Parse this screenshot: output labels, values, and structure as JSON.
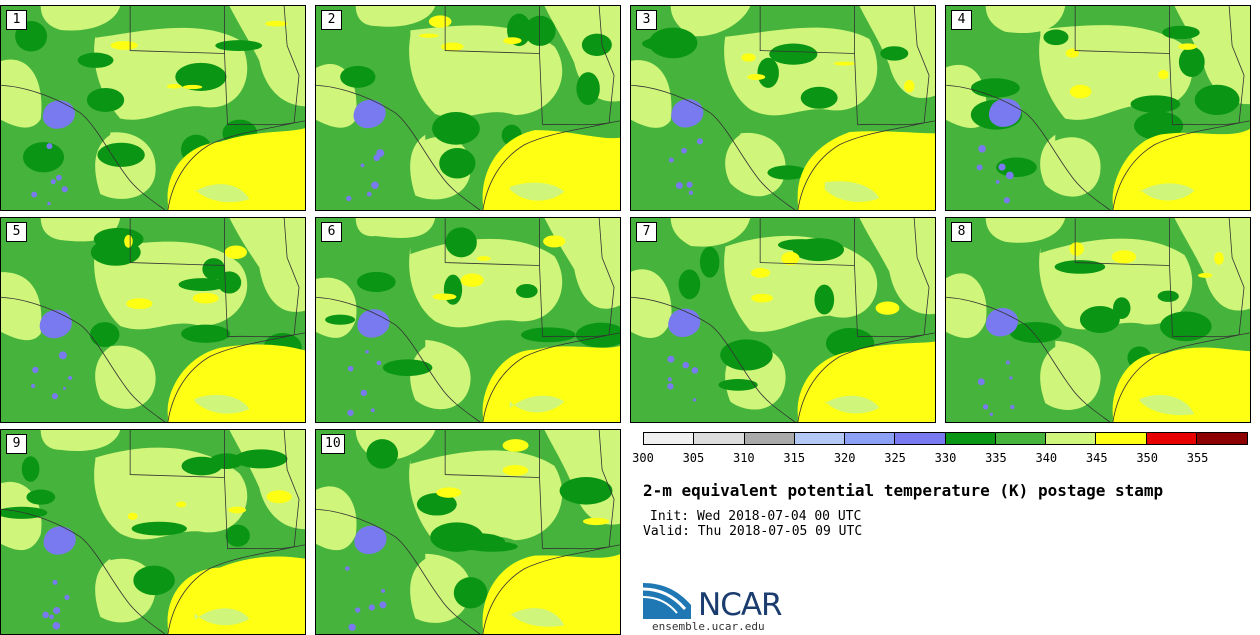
{
  "panels": [
    {
      "label": "1"
    },
    {
      "label": "2"
    },
    {
      "label": "3"
    },
    {
      "label": "4"
    },
    {
      "label": "5"
    },
    {
      "label": "6"
    },
    {
      "label": "7"
    },
    {
      "label": "8"
    },
    {
      "label": "9"
    },
    {
      "label": "10"
    }
  ],
  "colorbar": {
    "colors": [
      "#f0f0f0",
      "#dcdcdc",
      "#aaaaaa",
      "#b4c8f5",
      "#8ca0f5",
      "#7a7af0",
      "#0a9614",
      "#46b43c",
      "#cff57a",
      "#ffff14",
      "#e60000",
      "#8c0000"
    ],
    "ticks": [
      "300",
      "305",
      "310",
      "315",
      "320",
      "325",
      "330",
      "335",
      "340",
      "345",
      "350",
      "355"
    ]
  },
  "title": "2-m equivalent potential temperature (K) postage stamp",
  "init": "Init: Wed 2018-07-04 00 UTC",
  "valid": "Valid: Thu 2018-07-05 09 UTC",
  "logo": {
    "text": "NCAR",
    "url": "ensemble.ucar.edu",
    "colors": {
      "swoosh": "#1f77b4",
      "text": "#1a3c6e"
    }
  }
}
